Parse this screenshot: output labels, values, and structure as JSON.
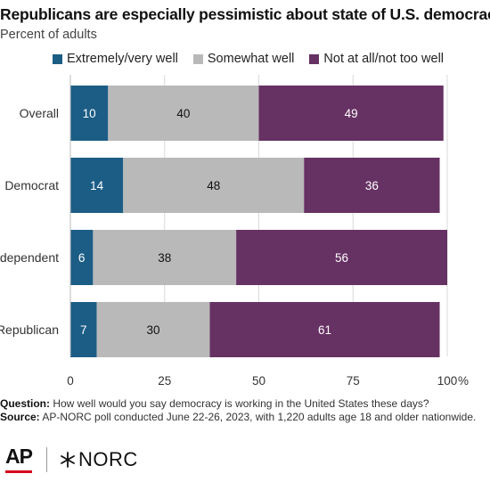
{
  "title": "Republicans are especially pessimistic about state of U.S. democracy.",
  "subtitle": "Percent of adults",
  "legend": [
    {
      "label": "Extremely/very well",
      "color": "#1c5d85"
    },
    {
      "label": "Somewhat well",
      "color": "#b9b9b9"
    },
    {
      "label": "Not at all/not too well",
      "color": "#663163"
    }
  ],
  "chart_data": {
    "type": "bar",
    "orientation": "horizontal",
    "stacked": true,
    "categories": [
      "Overall",
      "Democrat",
      "Independent",
      "Republican"
    ],
    "series": [
      {
        "name": "Extremely/very well",
        "values": [
          10,
          14,
          6,
          7
        ],
        "color": "#1c5d85",
        "label_color": "#ffffff"
      },
      {
        "name": "Somewhat well",
        "values": [
          40,
          48,
          38,
          30
        ],
        "color": "#b9b9b9",
        "label_color": "#111111"
      },
      {
        "name": "Not at all/not too well",
        "values": [
          49,
          36,
          56,
          61
        ],
        "color": "#663163",
        "label_color": "#ffffff"
      }
    ],
    "xlim": [
      0,
      100
    ],
    "xticks": [
      "0",
      "25",
      "50",
      "75",
      "100"
    ],
    "xunit": "%",
    "grid": true,
    "legend_position": "top"
  },
  "notes": {
    "question_label": "Question:",
    "question_text": "How well would you say democracy is working in the United States these days?",
    "source_label": "Source:",
    "source_text": "AP-NORC poll conducted June 22-26, 2023, with 1,220 adults age 18 and older nationwide."
  },
  "logos": {
    "ap": "AP",
    "norc": "NORC",
    "ap_bar_color": "#d6001c"
  }
}
